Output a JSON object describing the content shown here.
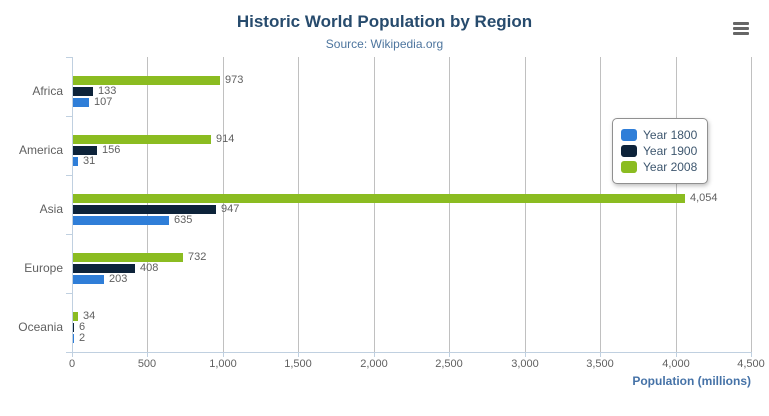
{
  "chart_data": {
    "type": "bar",
    "orientation": "horizontal",
    "title": "Historic World Population by Region",
    "subtitle": "Source: Wikipedia.org",
    "categories": [
      "Africa",
      "America",
      "Asia",
      "Europe",
      "Oceania"
    ],
    "series": [
      {
        "name": "Year 1800",
        "color": "#2f7ed8",
        "values": [
          107,
          31,
          635,
          203,
          2
        ]
      },
      {
        "name": "Year 1900",
        "color": "#0d233a",
        "values": [
          133,
          156,
          947,
          408,
          6
        ]
      },
      {
        "name": "Year 2008",
        "color": "#8bbc21",
        "values": [
          973,
          914,
          4054,
          732,
          34
        ]
      }
    ],
    "series_visual_order_top_to_bottom": [
      "Year 2008",
      "Year 1900",
      "Year 1800"
    ],
    "xlabel": "Population (millions)",
    "ylabel": "",
    "xlim": [
      0,
      4500
    ],
    "x_ticks": [
      0,
      500,
      1000,
      1500,
      2000,
      2500,
      3000,
      3500,
      4000,
      4500
    ],
    "grid": true,
    "data_labels": true,
    "legend": {
      "position": "floating-top-right",
      "items": [
        "Year 1800",
        "Year 1900",
        "Year 2008"
      ]
    }
  },
  "icons": {
    "menu": "hamburger-icon"
  },
  "colors": {
    "title": "#274b6d",
    "subtitle": "#4d759e",
    "axis_labels": "#606060",
    "category_labels": "#606060",
    "data_labels": "#606060",
    "axis_title": "#4572a7",
    "grid_line": "#c0c0c0",
    "axis_line": "#c0d0e0",
    "legend_text": "#3e576f",
    "legend_border": "#909090",
    "menu_icon": "#666666",
    "background": "#ffffff"
  }
}
